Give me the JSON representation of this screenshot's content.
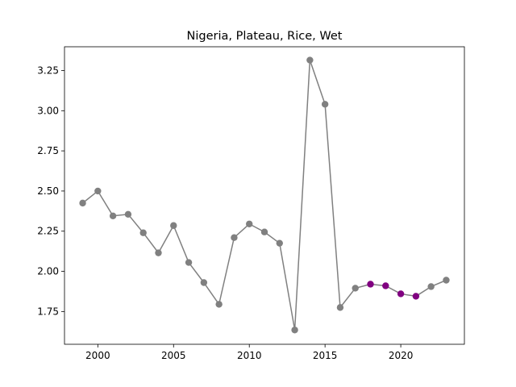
{
  "chart_data": {
    "type": "line",
    "title": "Nigeria, Plateau, Rice, Wet",
    "xlabel": "",
    "ylabel": "",
    "xlim": [
      1997.8,
      2024.2
    ],
    "ylim": [
      1.546,
      3.398
    ],
    "x_ticks": [
      2000,
      2005,
      2010,
      2015,
      2020
    ],
    "x_tick_labels": [
      "2000",
      "2005",
      "2010",
      "2015",
      "2020"
    ],
    "y_ticks": [
      1.75,
      2.0,
      2.25,
      2.5,
      2.75,
      3.0,
      3.25
    ],
    "y_tick_labels": [
      "1.75",
      "2.00",
      "2.25",
      "2.50",
      "2.75",
      "3.00",
      "3.25"
    ],
    "grid": false,
    "series": [
      {
        "color": "#808080",
        "x": [
          1999,
          2000,
          2001,
          2002,
          2003,
          2004,
          2005,
          2006,
          2007,
          2008,
          2009,
          2010,
          2011,
          2012,
          2013,
          2014,
          2015,
          2016,
          2017,
          2018,
          2019,
          2020,
          2021,
          2022,
          2023
        ],
        "values": [
          2.425,
          2.5,
          2.345,
          2.355,
          2.24,
          2.115,
          2.285,
          2.055,
          1.93,
          1.795,
          2.21,
          2.295,
          2.245,
          2.175,
          1.635,
          3.315,
          3.04,
          1.775,
          1.895,
          1.92,
          1.91,
          1.86,
          1.845,
          1.905,
          1.945
        ],
        "point_colors": [
          "#808080",
          "#808080",
          "#808080",
          "#808080",
          "#808080",
          "#808080",
          "#808080",
          "#808080",
          "#808080",
          "#808080",
          "#808080",
          "#808080",
          "#808080",
          "#808080",
          "#808080",
          "#808080",
          "#808080",
          "#808080",
          "#808080",
          "#800080",
          "#800080",
          "#800080",
          "#800080",
          "#808080",
          "#808080"
        ]
      }
    ]
  }
}
